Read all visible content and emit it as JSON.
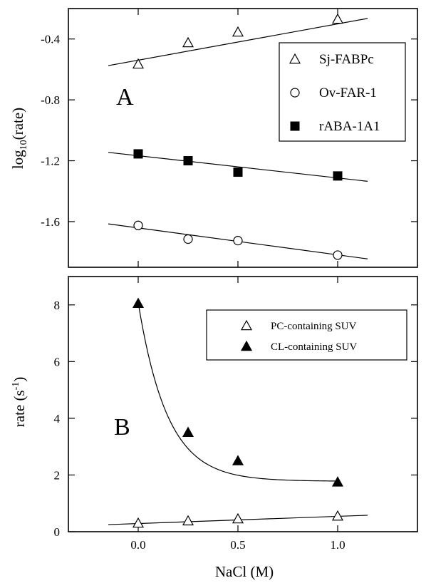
{
  "chart_data": [
    {
      "panel": "A",
      "type": "scatter",
      "label": "A",
      "ylabel": "log",
      "ylabel_sub": "10",
      "ylabel_rest": "(rate)",
      "xlim": [
        -0.35,
        1.4
      ],
      "ylim": [
        -1.9,
        -0.2
      ],
      "yticks": [
        -0.4,
        -0.8,
        -1.2,
        -1.6
      ],
      "ytick_labels": [
        "-0.4",
        "-0.8",
        "-1.2",
        "-1.6"
      ],
      "legend_position": "top-right",
      "series": [
        {
          "name": "Sj-FABPc",
          "marker": "triangle-open",
          "x": [
            0.0,
            0.25,
            0.5,
            1.0
          ],
          "y": [
            -0.565,
            -0.425,
            -0.355,
            -0.27
          ],
          "fit": {
            "x": [
              -0.15,
              1.15
            ],
            "y": [
              -0.575,
              -0.265
            ]
          }
        },
        {
          "name": "Ov-FAR-1",
          "marker": "circle-open",
          "x": [
            0.0,
            0.25,
            0.5,
            1.0
          ],
          "y": [
            -1.625,
            -1.715,
            -1.725,
            -1.82
          ],
          "fit": {
            "x": [
              -0.15,
              1.15
            ],
            "y": [
              -1.615,
              -1.845
            ]
          }
        },
        {
          "name": "rABA-1A1",
          "marker": "square-filled",
          "x": [
            0.0,
            0.25,
            0.5,
            1.0
          ],
          "y": [
            -1.155,
            -1.2,
            -1.275,
            -1.3
          ],
          "fit": {
            "x": [
              -0.15,
              1.15
            ],
            "y": [
              -1.145,
              -1.335
            ]
          }
        }
      ]
    },
    {
      "panel": "B",
      "type": "scatter",
      "label": "B",
      "ylabel": "rate (s",
      "ylabel_sup": "-1",
      "ylabel_rest": ")",
      "xlabel": "NaCl (M)",
      "xlim": [
        -0.35,
        1.4
      ],
      "ylim": [
        0,
        9
      ],
      "xticks": [
        0.0,
        0.5,
        1.0
      ],
      "xtick_labels": [
        "0.0",
        "0.5",
        "1.0"
      ],
      "yticks": [
        0,
        2,
        4,
        6,
        8
      ],
      "ytick_labels": [
        "0",
        "2",
        "4",
        "6",
        "8"
      ],
      "legend_position": "top-right",
      "series": [
        {
          "name": "PC-containing SUV",
          "marker": "triangle-open",
          "x": [
            0.0,
            0.25,
            0.5,
            1.0
          ],
          "y": [
            0.3,
            0.38,
            0.45,
            0.55
          ],
          "fit": {
            "type": "linear",
            "x": [
              -0.15,
              1.15
            ],
            "y": [
              0.25,
              0.58
            ]
          }
        },
        {
          "name": "CL-containing SUV",
          "marker": "triangle-filled",
          "x": [
            0.0,
            0.25,
            0.5,
            1.0
          ],
          "y": [
            8.05,
            3.5,
            2.5,
            1.75
          ],
          "fit": {
            "type": "exponential",
            "x_range": [
              0.0,
              1.0
            ],
            "A": 6.3,
            "k": 6.8,
            "C": 1.78
          }
        }
      ]
    }
  ]
}
